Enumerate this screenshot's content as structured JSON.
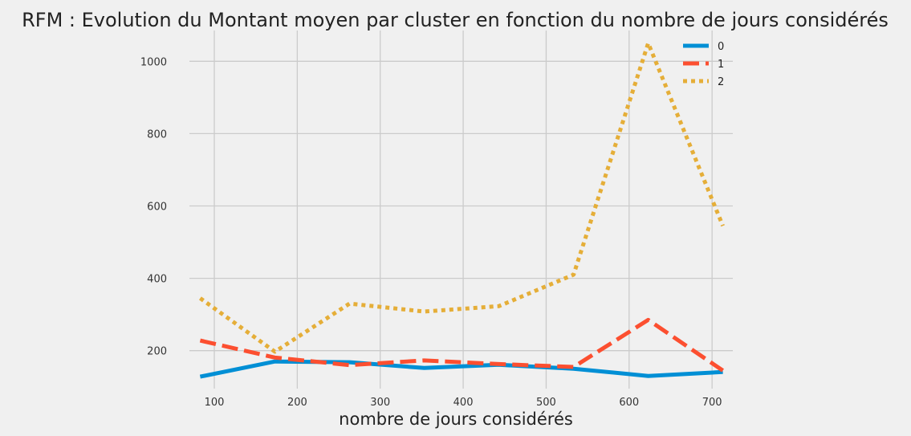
{
  "chart_data": {
    "type": "line",
    "title": "RFM : Evolution du Montant moyen par cluster en fonction du nombre de jours considérés",
    "xlabel": "nombre de jours considérés",
    "ylabel": "",
    "x": [
      83,
      173,
      263,
      353,
      443,
      533,
      623,
      713
    ],
    "xlim": [
      70,
      725
    ],
    "ylim": [
      95,
      1085
    ],
    "xticks": [
      100,
      200,
      300,
      400,
      500,
      600,
      700
    ],
    "yticks": [
      200,
      400,
      600,
      800,
      1000
    ],
    "grid": true,
    "legend": "top-right",
    "series": [
      {
        "name": "0",
        "color": "#008fd5",
        "dash": "solid",
        "values": [
          128,
          170,
          168,
          152,
          161,
          150,
          130,
          141
        ]
      },
      {
        "name": "1",
        "color": "#fc4f30",
        "dash": "dashed",
        "values": [
          228,
          181,
          160,
          173,
          163,
          155,
          285,
          145
        ]
      },
      {
        "name": "2",
        "color": "#e5ae38",
        "dash": "dotted",
        "values": [
          345,
          197,
          330,
          308,
          323,
          410,
          1050,
          545
        ]
      }
    ]
  }
}
